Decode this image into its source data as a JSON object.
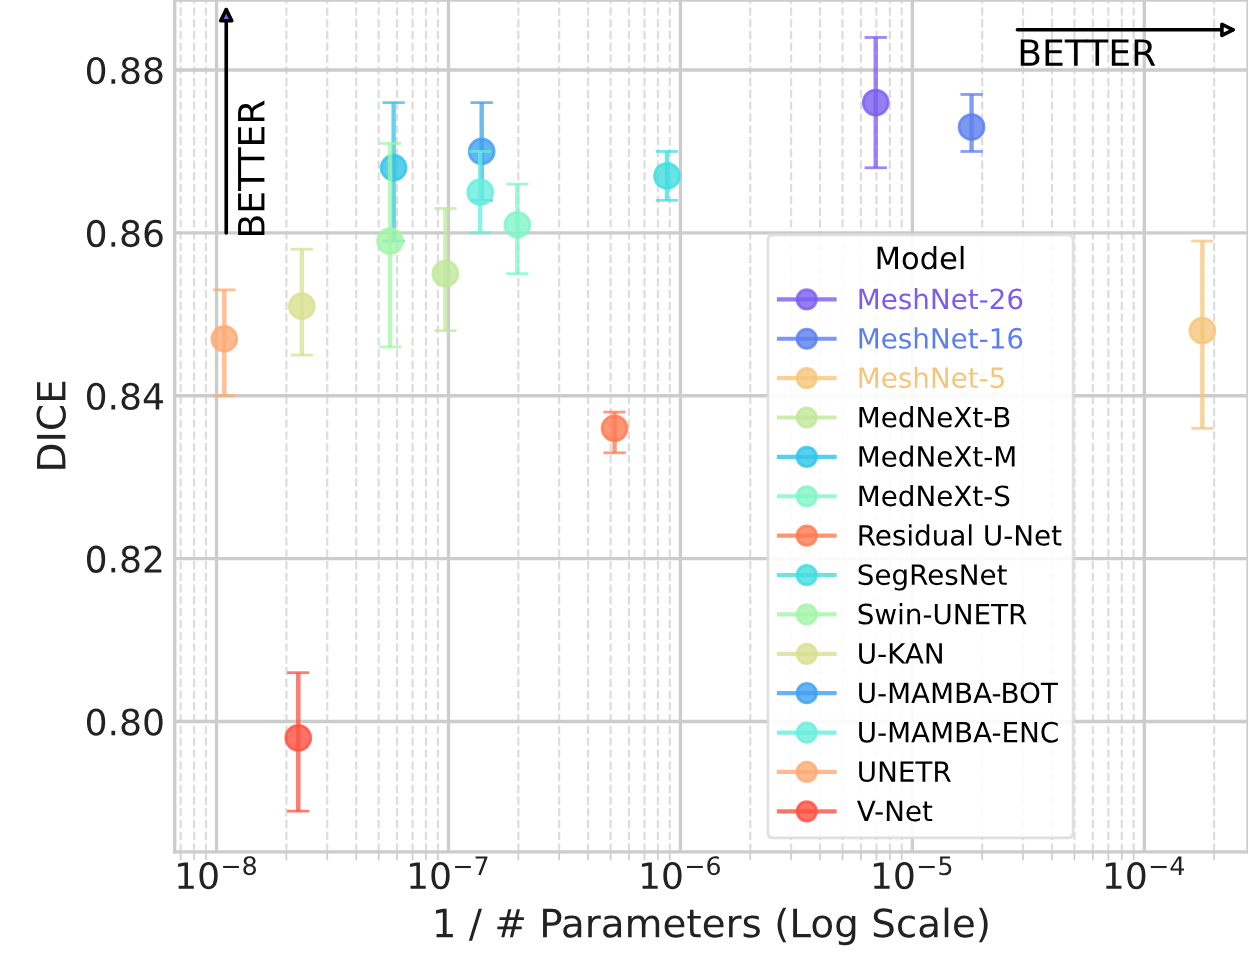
{
  "chart_data": {
    "type": "scatter",
    "xlabel": "1 / # Parameters (Log Scale)",
    "ylabel": "DICE",
    "legend_title": "Model",
    "log": "x",
    "xlim": [
      6.6e-09,
      0.00028
    ],
    "ylim": [
      0.784,
      0.8886
    ],
    "xticks": [
      {
        "value": 1e-08,
        "label": "10$^{−8}$"
      },
      {
        "value": 1e-07,
        "label": "10$^{−7}$"
      },
      {
        "value": 1e-06,
        "label": "10$^{−6}$"
      },
      {
        "value": 1e-05,
        "label": "10$^{−5}$"
      },
      {
        "value": 0.0001,
        "label": "10$^{−4}$"
      }
    ],
    "yticks": [
      {
        "value": 0.8,
        "label": "0.80"
      },
      {
        "value": 0.82,
        "label": "0.82"
      },
      {
        "value": 0.84,
        "label": "0.84"
      },
      {
        "value": 0.86,
        "label": "0.86"
      },
      {
        "value": 0.88,
        "label": "0.88"
      }
    ],
    "grid": true,
    "legend": "lower right",
    "marker": "circle",
    "annotations": [
      "BETTER",
      "BETTER"
    ],
    "series": [
      {
        "name": "MeshNet-26",
        "color": "#7b5cf0",
        "x": [
          6.95e-06
        ],
        "values": [
          0.876
        ],
        "errors": [
          [
            0.868,
            0.884
          ]
        ]
      },
      {
        "name": "MeshNet-16",
        "color": "#5a7ef0",
        "x": [
          1.8e-05
        ],
        "values": [
          0.873
        ],
        "errors": [
          [
            0.87,
            0.877
          ]
        ]
      },
      {
        "name": "MeshNet-5",
        "color": "#f5c57a",
        "x": [
          0.000178
        ],
        "values": [
          0.848
        ],
        "errors": [
          [
            0.836,
            0.859
          ]
        ]
      },
      {
        "name": "MedNeXt-B",
        "color": "#bfe89a",
        "x": [
          9.7e-08
        ],
        "values": [
          0.855
        ],
        "errors": [
          [
            0.848,
            0.863
          ]
        ]
      },
      {
        "name": "MedNeXt-M",
        "color": "#2ec4e8",
        "x": [
          5.8e-08
        ],
        "values": [
          0.868
        ],
        "errors": [
          [
            0.859,
            0.876
          ]
        ]
      },
      {
        "name": "MedNeXt-S",
        "color": "#7ff5c8",
        "x": [
          1.98e-07
        ],
        "values": [
          0.861
        ],
        "errors": [
          [
            0.855,
            0.866
          ]
        ]
      },
      {
        "name": "Residual U-Net",
        "color": "#ff7a50",
        "x": [
          5.2e-07
        ],
        "values": [
          0.836
        ],
        "errors": [
          [
            0.833,
            0.838
          ]
        ]
      },
      {
        "name": "SegResNet",
        "color": "#40dde0",
        "x": [
          8.75e-07
        ],
        "values": [
          0.867
        ],
        "errors": [
          [
            0.864,
            0.87
          ]
        ]
      },
      {
        "name": "Swin-UNETR",
        "color": "#a2f5a8",
        "x": [
          5.6e-08
        ],
        "values": [
          0.859
        ],
        "errors": [
          [
            0.846,
            0.871
          ]
        ]
      },
      {
        "name": "U-KAN",
        "color": "#d8e090",
        "x": [
          2.33e-08
        ],
        "values": [
          0.851
        ],
        "errors": [
          [
            0.845,
            0.858
          ]
        ]
      },
      {
        "name": "U-MAMBA-BOT",
        "color": "#3ea0f0",
        "x": [
          1.39e-07
        ],
        "values": [
          0.87
        ],
        "errors": [
          [
            0.864,
            0.876
          ]
        ]
      },
      {
        "name": "U-MAMBA-ENC",
        "color": "#66eedd",
        "x": [
          1.37e-07
        ],
        "values": [
          0.865
        ],
        "errors": [
          [
            0.86,
            0.87
          ]
        ]
      },
      {
        "name": "UNETR",
        "color": "#ffaa70",
        "x": [
          1.08e-08
        ],
        "values": [
          0.847
        ],
        "errors": [
          [
            0.84,
            0.853
          ]
        ]
      },
      {
        "name": "V-Net",
        "color": "#ff5040",
        "x": [
          2.25e-08
        ],
        "values": [
          0.798
        ],
        "errors": [
          [
            0.789,
            0.806
          ]
        ]
      }
    ]
  }
}
